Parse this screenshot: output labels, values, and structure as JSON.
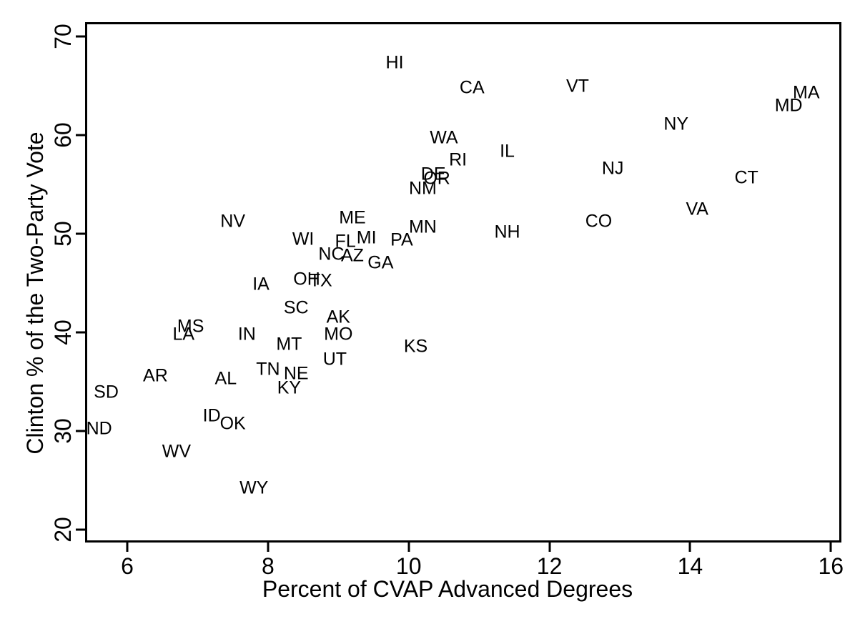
{
  "colors": {
    "text": "#000000",
    "background": "#ffffff"
  },
  "chart_data": {
    "type": "scatter",
    "marker_style": "state-abbreviation-text-labels",
    "title": "",
    "xlabel": "Percent of CVAP Advanced Degrees",
    "ylabel": "Clinton % of the Two-Party Vote",
    "xlim": [
      5.4,
      16.15
    ],
    "ylim": [
      18.7,
      71.45
    ],
    "xticks": [
      6,
      8,
      10,
      12,
      14,
      16
    ],
    "yticks": [
      20,
      30,
      40,
      50,
      60,
      70
    ],
    "grid": false,
    "legend": "none",
    "points": [
      {
        "label": "HI",
        "x": 9.8,
        "y": 67.3
      },
      {
        "label": "CA",
        "x": 10.9,
        "y": 64.8
      },
      {
        "label": "VT",
        "x": 12.4,
        "y": 64.9
      },
      {
        "label": "MA",
        "x": 15.65,
        "y": 64.3
      },
      {
        "label": "MD",
        "x": 15.4,
        "y": 63.0
      },
      {
        "label": "NY",
        "x": 13.8,
        "y": 61.1
      },
      {
        "label": "WA",
        "x": 10.5,
        "y": 59.7
      },
      {
        "label": "IL",
        "x": 11.4,
        "y": 58.3
      },
      {
        "label": "RI",
        "x": 10.7,
        "y": 57.5
      },
      {
        "label": "NJ",
        "x": 12.9,
        "y": 56.6
      },
      {
        "label": "DE",
        "x": 10.35,
        "y": 56.0
      },
      {
        "label": "OR",
        "x": 10.4,
        "y": 55.6
      },
      {
        "label": "CT",
        "x": 14.8,
        "y": 55.65
      },
      {
        "label": "NM",
        "x": 10.2,
        "y": 54.6
      },
      {
        "label": "VA",
        "x": 14.1,
        "y": 52.5
      },
      {
        "label": "ME",
        "x": 9.2,
        "y": 51.6
      },
      {
        "label": "NV",
        "x": 7.5,
        "y": 51.2
      },
      {
        "label": "CO",
        "x": 12.7,
        "y": 51.2
      },
      {
        "label": "MN",
        "x": 10.2,
        "y": 50.65
      },
      {
        "label": "NH",
        "x": 11.4,
        "y": 50.15
      },
      {
        "label": "WI",
        "x": 8.5,
        "y": 49.4
      },
      {
        "label": "MI",
        "x": 9.4,
        "y": 49.6
      },
      {
        "label": "FL",
        "x": 9.1,
        "y": 49.2
      },
      {
        "label": "PA",
        "x": 9.9,
        "y": 49.35
      },
      {
        "label": "NC",
        "x": 8.9,
        "y": 47.9
      },
      {
        "label": "AZ",
        "x": 9.2,
        "y": 47.75
      },
      {
        "label": "GA",
        "x": 9.6,
        "y": 47.0
      },
      {
        "label": "OH",
        "x": 8.55,
        "y": 45.35
      },
      {
        "label": "TX",
        "x": 8.75,
        "y": 45.2
      },
      {
        "label": "IA",
        "x": 7.9,
        "y": 44.85
      },
      {
        "label": "SC",
        "x": 8.4,
        "y": 42.5
      },
      {
        "label": "AK",
        "x": 9.0,
        "y": 41.5
      },
      {
        "label": "MS",
        "x": 6.9,
        "y": 40.6
      },
      {
        "label": "MO",
        "x": 9.0,
        "y": 39.8
      },
      {
        "label": "LA",
        "x": 6.8,
        "y": 39.8
      },
      {
        "label": "IN",
        "x": 7.7,
        "y": 39.8
      },
      {
        "label": "MT",
        "x": 8.3,
        "y": 38.8
      },
      {
        "label": "KS",
        "x": 10.1,
        "y": 38.55
      },
      {
        "label": "UT",
        "x": 8.95,
        "y": 37.25
      },
      {
        "label": "TN",
        "x": 8.0,
        "y": 36.2
      },
      {
        "label": "NE",
        "x": 8.4,
        "y": 35.8
      },
      {
        "label": "AR",
        "x": 6.4,
        "y": 35.6
      },
      {
        "label": "AL",
        "x": 7.4,
        "y": 35.3
      },
      {
        "label": "KY",
        "x": 8.3,
        "y": 34.35
      },
      {
        "label": "SD",
        "x": 5.7,
        "y": 33.9
      },
      {
        "label": "ID",
        "x": 7.2,
        "y": 31.5
      },
      {
        "label": "OK",
        "x": 7.5,
        "y": 30.7
      },
      {
        "label": "ND",
        "x": 5.6,
        "y": 30.2
      },
      {
        "label": "WV",
        "x": 6.7,
        "y": 27.9
      },
      {
        "label": "WY",
        "x": 7.8,
        "y": 24.2
      }
    ]
  }
}
